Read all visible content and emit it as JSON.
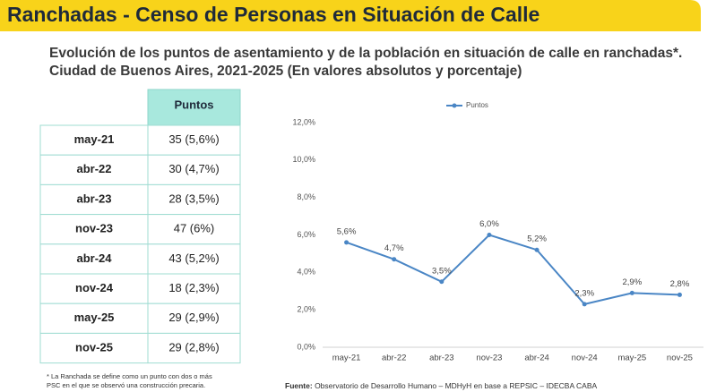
{
  "header": {
    "title": "Ranchadas - Censo de Personas en Situación de Calle"
  },
  "subtitle": [
    "Evolución de los puntos de asentamiento y de la población en situación de calle en ranchadas*.",
    "Ciudad de Buenos Aires, 2021-2025 (En valores  absolutos y porcentaje)"
  ],
  "table": {
    "header": [
      "Puntos"
    ],
    "rows": [
      [
        "may-21",
        "35 (5,6%)"
      ],
      [
        "abr-22",
        "30 (4,7%)"
      ],
      [
        "abr-23",
        "28 (3,5%)"
      ],
      [
        "nov-23",
        "47 (6%)"
      ],
      [
        "abr-24",
        "43 (5,2%)"
      ],
      [
        "nov-24",
        "18 (2,3%)"
      ],
      [
        "may-25",
        "29 (2,9%)"
      ],
      [
        "nov-25",
        "29 (2,8%)"
      ]
    ]
  },
  "footnote": [
    "* La Ranchada se define como un punto con dos o más",
    "PSC en el que se observó una construcción precaria."
  ],
  "source": {
    "label": "Fuente:",
    "text": " Observatorio de Desarrollo Humano – MDHyH en base a REPSIC – IDECBA CABA"
  },
  "chart_data": {
    "type": "line",
    "categories": [
      "may-21",
      "abr-22",
      "abr-23",
      "nov-23",
      "abr-24",
      "nov-24",
      "may-25",
      "nov-25"
    ],
    "series": [
      {
        "name": "Puntos",
        "color": "#4a86c5",
        "values": [
          5.6,
          4.7,
          3.5,
          6.0,
          5.2,
          2.3,
          2.9,
          2.8
        ],
        "value_labels": [
          "5,6%",
          "4,7%",
          "3,5%",
          "6,0%",
          "5,2%",
          "2,3%",
          "2,9%",
          "2,8%"
        ]
      }
    ],
    "ylim": [
      0,
      12
    ],
    "yticks": [
      {
        "value": 0,
        "label": "0,0%"
      },
      {
        "value": 2,
        "label": "2,0%"
      },
      {
        "value": 4,
        "label": "4,0%"
      },
      {
        "value": 6,
        "label": "6,0%"
      },
      {
        "value": 8,
        "label": "8,0%"
      },
      {
        "value": 10,
        "label": "10,0%"
      },
      {
        "value": 12,
        "label": "12,0%"
      }
    ],
    "grid": false,
    "legend": "top"
  }
}
